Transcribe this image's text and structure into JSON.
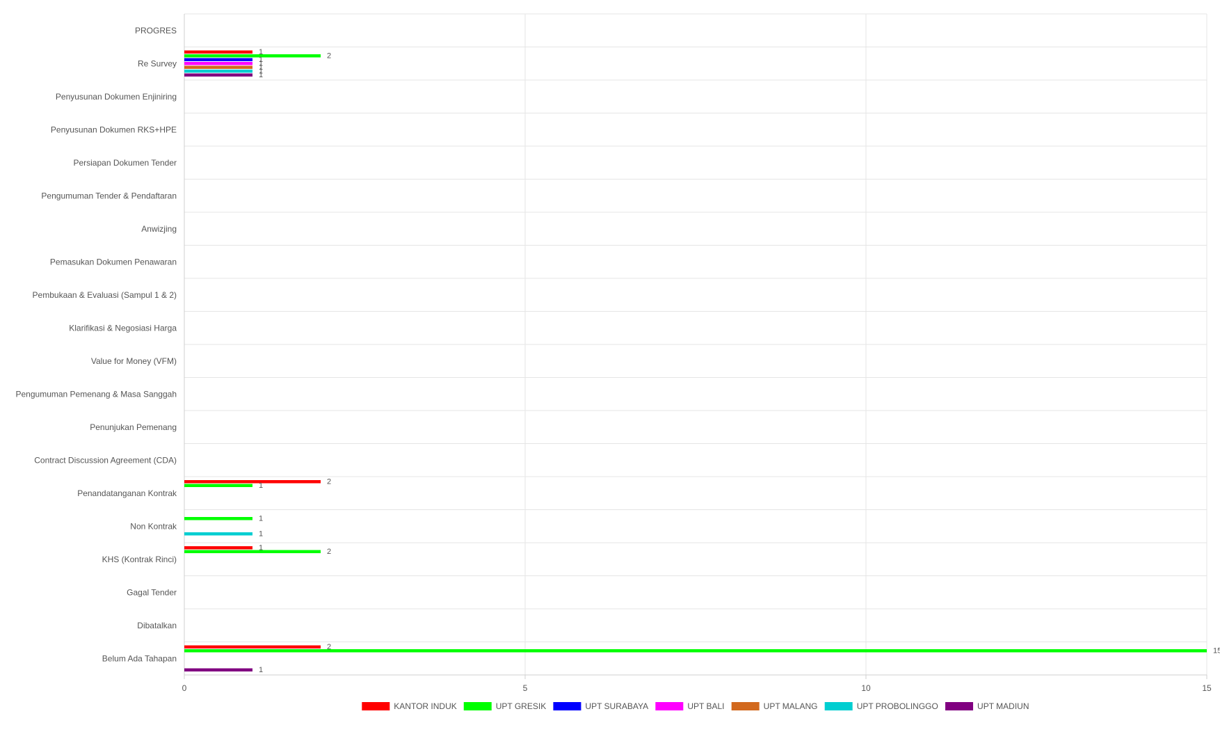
{
  "chart_data": {
    "type": "bar",
    "orientation": "horizontal",
    "categories": [
      "PROGRES",
      "Re Survey",
      "Penyusunan Dokumen Enjiniring",
      "Penyusunan Dokumen RKS+HPE",
      "Persiapan Dokumen Tender",
      "Pengumuman Tender & Pendaftaran",
      "Anwizjing",
      "Pemasukan Dokumen Penawaran",
      "Pembukaan & Evaluasi (Sampul 1 & 2)",
      "Klarifikasi & Negosiasi Harga",
      "Value for Money (VFM)",
      "Pengumuman Pemenang & Masa Sanggah",
      "Penunjukan Pemenang",
      "Contract Discussion Agreement (CDA)",
      "Penandatanganan Kontrak",
      "Non Kontrak",
      "KHS (Kontrak Rinci)",
      "Gagal Tender",
      "Dibatalkan",
      "Belum Ada Tahapan"
    ],
    "series": [
      {
        "name": "KANTOR INDUK",
        "color": "#ff0000",
        "values": [
          null,
          1,
          null,
          null,
          null,
          null,
          null,
          null,
          null,
          null,
          null,
          null,
          null,
          null,
          2,
          null,
          1,
          null,
          null,
          2
        ]
      },
      {
        "name": "UPT GRESIK",
        "color": "#00ff00",
        "values": [
          null,
          2,
          null,
          null,
          null,
          null,
          null,
          null,
          null,
          null,
          null,
          null,
          null,
          null,
          1,
          1,
          2,
          null,
          null,
          15
        ]
      },
      {
        "name": "UPT SURABAYA",
        "color": "#0000ff",
        "values": [
          null,
          1,
          null,
          null,
          null,
          null,
          null,
          null,
          null,
          null,
          null,
          null,
          null,
          null,
          null,
          null,
          null,
          null,
          null,
          null
        ]
      },
      {
        "name": "UPT BALI",
        "color": "#ff00ff",
        "values": [
          null,
          1,
          null,
          null,
          null,
          null,
          null,
          null,
          null,
          null,
          null,
          null,
          null,
          null,
          null,
          null,
          null,
          null,
          null,
          null
        ]
      },
      {
        "name": "UPT MALANG",
        "color": "#d2691e",
        "values": [
          null,
          1,
          null,
          null,
          null,
          null,
          null,
          null,
          null,
          null,
          null,
          null,
          null,
          null,
          null,
          null,
          null,
          null,
          null,
          null
        ]
      },
      {
        "name": "UPT PROBOLINGGO",
        "color": "#00ced1",
        "values": [
          null,
          1,
          null,
          null,
          null,
          null,
          null,
          null,
          null,
          null,
          null,
          null,
          null,
          null,
          null,
          1,
          null,
          null,
          null,
          null
        ]
      },
      {
        "name": "UPT MADIUN",
        "color": "#800080",
        "values": [
          null,
          1,
          null,
          null,
          null,
          null,
          null,
          null,
          null,
          null,
          null,
          null,
          null,
          null,
          null,
          null,
          null,
          null,
          null,
          1
        ]
      }
    ],
    "xlim": [
      0,
      15
    ],
    "xticks": [
      0,
      5,
      10,
      15
    ],
    "grid": true,
    "legend_position": "bottom"
  }
}
